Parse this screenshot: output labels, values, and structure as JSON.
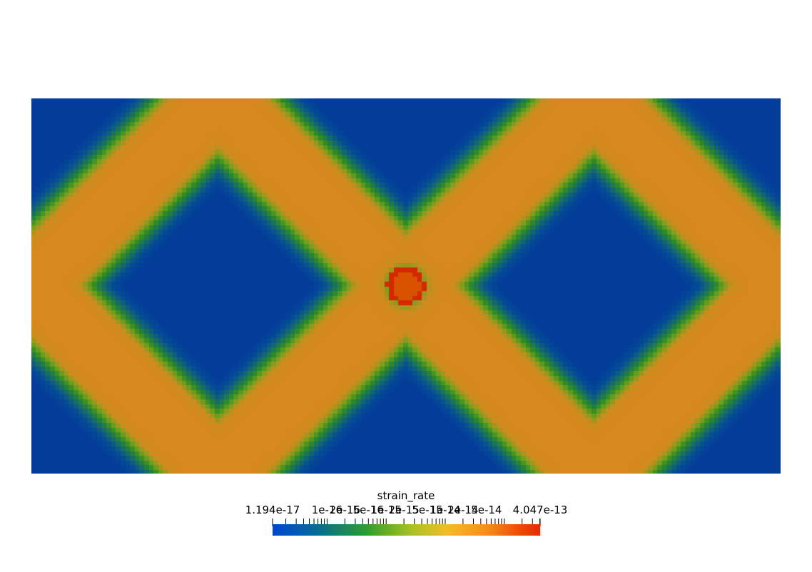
{
  "scalar_bar": {
    "title": "strain_rate",
    "range_min": 1.194e-17,
    "range_max": 4.047e-13,
    "scale": "log",
    "labels": {
      "min": "1.194e-17",
      "max": "4.047e-13",
      "ticks": [
        "1e-16",
        "2e-16",
        "5e-16",
        "1e-15",
        "2e-15",
        "5e-15",
        "1e-14",
        "2e-14",
        "5e-14"
      ]
    },
    "colormap": [
      "#0044d4",
      "#0b6e8a",
      "#2f9c2f",
      "#a9c21f",
      "#f3bd23",
      "#f58f16",
      "#f44a05",
      "#e32a00"
    ]
  },
  "field": {
    "background_color": "#033d99",
    "band_color": "#d7881f",
    "center_color": "#d85200",
    "center_ring_color": "#d42800",
    "transition_color": "#2e8c23"
  }
}
